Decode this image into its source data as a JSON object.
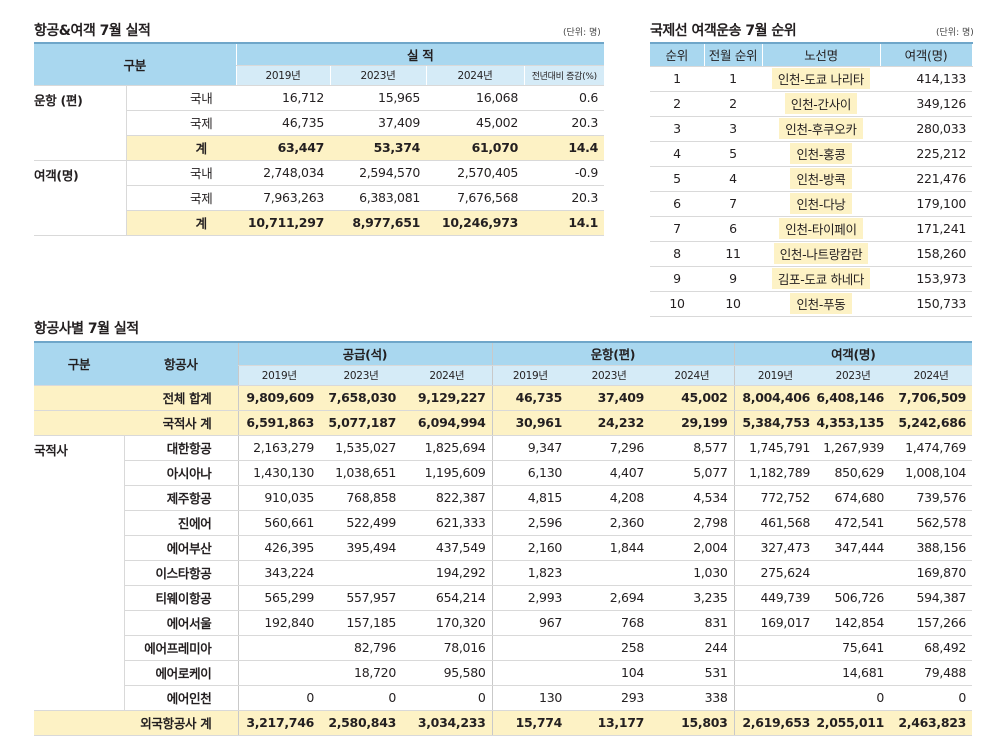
{
  "sec1": {
    "title": "항공&여객 7월 실적",
    "unit": "(단위: 명)",
    "h_group": "구분",
    "h_perf": "실 적",
    "years": [
      "2019년",
      "2023년",
      "2024년"
    ],
    "h_change": "전년대비 증감(%)",
    "ops_label": "운항 (편)",
    "pax_label": "여객(명)",
    "ops": [
      {
        "cat": "국내",
        "v": [
          "16,712",
          "15,965",
          "16,068"
        ],
        "chg": "0.6"
      },
      {
        "cat": "국제",
        "v": [
          "46,735",
          "37,409",
          "45,002"
        ],
        "chg": "20.3"
      },
      {
        "cat": "계",
        "v": [
          "63,447",
          "53,374",
          "61,070"
        ],
        "chg": "14.4"
      }
    ],
    "pax": [
      {
        "cat": "국내",
        "v": [
          "2,748,034",
          "2,594,570",
          "2,570,405"
        ],
        "chg": "-0.9"
      },
      {
        "cat": "국제",
        "v": [
          "7,963,263",
          "6,383,081",
          "7,676,568"
        ],
        "chg": "20.3"
      },
      {
        "cat": "계",
        "v": [
          "10,711,297",
          "8,977,651",
          "10,246,973"
        ],
        "chg": "14.1"
      }
    ]
  },
  "sec2": {
    "title": "국제선 여객운송 7월 순위",
    "unit": "(단위: 명)",
    "headers": [
      "순위",
      "전월 순위",
      "노선명",
      "여객(명)"
    ],
    "rows": [
      {
        "rank": "1",
        "prev": "1",
        "route": "인천-도쿄 나리타",
        "pax": "414,133"
      },
      {
        "rank": "2",
        "prev": "2",
        "route": "인천-간사이",
        "pax": "349,126"
      },
      {
        "rank": "3",
        "prev": "3",
        "route": "인천-후쿠오카",
        "pax": "280,033"
      },
      {
        "rank": "4",
        "prev": "5",
        "route": "인천-홍콩",
        "pax": "225,212"
      },
      {
        "rank": "5",
        "prev": "4",
        "route": "인천-방콕",
        "pax": "221,476"
      },
      {
        "rank": "6",
        "prev": "7",
        "route": "인천-다낭",
        "pax": "179,100"
      },
      {
        "rank": "7",
        "prev": "6",
        "route": "인천-타이페이",
        "pax": "171,241"
      },
      {
        "rank": "8",
        "prev": "11",
        "route": "인천-나트랑캄란",
        "pax": "158,260"
      },
      {
        "rank": "9",
        "prev": "9",
        "route": "김포-도쿄 하네다",
        "pax": "153,973"
      },
      {
        "rank": "10",
        "prev": "10",
        "route": "인천-푸동",
        "pax": "150,733"
      }
    ]
  },
  "sec3": {
    "title": "항공사별 7월 실적",
    "h_group": "구분",
    "h_airline": "항공사",
    "h_seats": "공급(석)",
    "h_flights": "운항(편)",
    "h_pax": "여객(명)",
    "years": [
      "2019년",
      "2023년",
      "2024년"
    ],
    "total": {
      "label": "전체 합계",
      "v": [
        "9,809,609",
        "7,658,030",
        "9,129,227",
        "46,735",
        "37,409",
        "45,002",
        "8,004,406",
        "6,408,146",
        "7,706,509"
      ]
    },
    "domestic_total": {
      "label": "국적사 계",
      "v": [
        "6,591,863",
        "5,077,187",
        "6,094,994",
        "30,961",
        "24,232",
        "29,199",
        "5,384,753",
        "4,353,135",
        "5,242,686"
      ]
    },
    "domestic_label": "국적사",
    "airlines": [
      {
        "name": "대한항공",
        "v": [
          "2,163,279",
          "1,535,027",
          "1,825,694",
          "9,347",
          "7,296",
          "8,577",
          "1,745,791",
          "1,267,939",
          "1,474,769"
        ]
      },
      {
        "name": "아시아나",
        "v": [
          "1,430,130",
          "1,038,651",
          "1,195,609",
          "6,130",
          "4,407",
          "5,077",
          "1,182,789",
          "850,629",
          "1,008,104"
        ]
      },
      {
        "name": "제주항공",
        "v": [
          "910,035",
          "768,858",
          "822,387",
          "4,815",
          "4,208",
          "4,534",
          "772,752",
          "674,680",
          "739,576"
        ]
      },
      {
        "name": "진에어",
        "v": [
          "560,661",
          "522,499",
          "621,333",
          "2,596",
          "2,360",
          "2,798",
          "461,568",
          "472,541",
          "562,578"
        ]
      },
      {
        "name": "에어부산",
        "v": [
          "426,395",
          "395,494",
          "437,549",
          "2,160",
          "1,844",
          "2,004",
          "327,473",
          "347,444",
          "388,156"
        ]
      },
      {
        "name": "이스타항공",
        "v": [
          "343,224",
          "",
          "194,292",
          "1,823",
          "",
          "1,030",
          "275,624",
          "",
          "169,870"
        ]
      },
      {
        "name": "티웨이항공",
        "v": [
          "565,299",
          "557,957",
          "654,214",
          "2,993",
          "2,694",
          "3,235",
          "449,739",
          "506,726",
          "594,387"
        ]
      },
      {
        "name": "에어서울",
        "v": [
          "192,840",
          "157,185",
          "170,320",
          "967",
          "768",
          "831",
          "169,017",
          "142,854",
          "157,266"
        ]
      },
      {
        "name": "에어프레미아",
        "v": [
          "",
          "82,796",
          "78,016",
          "",
          "258",
          "244",
          "",
          "75,641",
          "68,492"
        ]
      },
      {
        "name": "에어로케이",
        "v": [
          "",
          "18,720",
          "95,580",
          "",
          "104",
          "531",
          "",
          "14,681",
          "79,488"
        ]
      },
      {
        "name": "에어인천",
        "v": [
          "0",
          "0",
          "0",
          "130",
          "293",
          "338",
          "",
          "0",
          "0"
        ]
      }
    ],
    "foreign_total": {
      "label": "외국항공사 계",
      "v": [
        "3,217,746",
        "2,580,843",
        "3,034,233",
        "15,774",
        "13,177",
        "15,803",
        "2,619,653",
        "2,055,011",
        "2,463,823"
      ]
    }
  }
}
